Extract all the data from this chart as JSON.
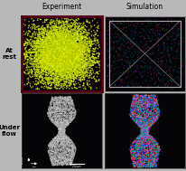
{
  "title_experiment": "Experiment",
  "title_simulation": "Simulation",
  "label_at_rest": "At\nrest",
  "label_under_flow": "Under\nflow",
  "bg_color": "#b8b8b8",
  "fig_width": 2.07,
  "fig_height": 1.89,
  "seed": 42,
  "exp_rest_bg": "#0a0005",
  "sim_rest_bg": "#050508",
  "exp_flow_bg": "#050508",
  "sim_flow_bg": "#050508",
  "exp_rest_border": "#550011",
  "sim_rest_border": "#888888"
}
